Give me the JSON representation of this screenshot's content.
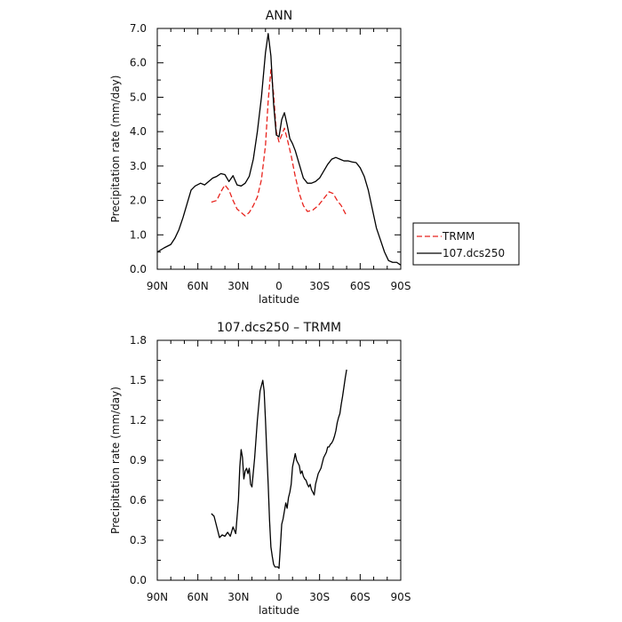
{
  "legend": {
    "entries": [
      {
        "label": "TRMM",
        "color": "#e8231d",
        "dash": "6,3"
      },
      {
        "label": "107.dcs250",
        "color": "#000000",
        "dash": ""
      }
    ]
  },
  "chart_data": [
    {
      "type": "line",
      "title": "ANN",
      "xlabel": "latitude",
      "ylabel": "Precipitation rate (mm/day)",
      "xlim": [
        -90,
        90
      ],
      "ylim": [
        0,
        7
      ],
      "x_ticks": [
        -90,
        -60,
        -30,
        0,
        30,
        60,
        90
      ],
      "x_tick_labels": [
        "90N",
        "60N",
        "30N",
        "0",
        "30S",
        "60S",
        "90S"
      ],
      "y_ticks": [
        0,
        1,
        2,
        3,
        4,
        5,
        6,
        7
      ],
      "y_tick_labels": [
        "0.0",
        "1.0",
        "2.0",
        "3.0",
        "4.0",
        "5.0",
        "6.0",
        "7.0"
      ],
      "series": [
        {
          "name": "TRMM",
          "color": "#e8231d",
          "dash": "6,3",
          "x": [
            -50,
            -46,
            -43,
            -40,
            -37,
            -34,
            -31,
            -28,
            -25,
            -22,
            -19,
            -16,
            -13,
            -10,
            -8,
            -6,
            -4,
            -2,
            0,
            2,
            4,
            6,
            9,
            12,
            15,
            18,
            21,
            25,
            29,
            33,
            37,
            40,
            43,
            46,
            50
          ],
          "y": [
            1.95,
            2.0,
            2.25,
            2.45,
            2.3,
            2.0,
            1.75,
            1.65,
            1.55,
            1.65,
            1.85,
            2.1,
            2.6,
            3.6,
            4.9,
            5.8,
            5.1,
            4.0,
            3.7,
            3.9,
            4.1,
            3.8,
            3.3,
            2.7,
            2.2,
            1.85,
            1.68,
            1.72,
            1.85,
            2.05,
            2.25,
            2.2,
            2.0,
            1.85,
            1.55
          ]
        },
        {
          "name": "107.dcs250",
          "color": "#000000",
          "dash": "",
          "x": [
            -90,
            -85,
            -80,
            -77,
            -74,
            -71,
            -68,
            -65,
            -62,
            -58,
            -55,
            -52,
            -49,
            -46,
            -43,
            -40,
            -37,
            -34,
            -31,
            -28,
            -25,
            -22,
            -19,
            -16,
            -13,
            -10,
            -8,
            -6,
            -4,
            -2,
            0,
            2,
            4,
            6,
            8,
            10,
            12,
            15,
            18,
            21,
            24,
            27,
            30,
            33,
            36,
            39,
            42,
            45,
            48,
            51,
            54,
            57,
            60,
            63,
            66,
            69,
            72,
            75,
            78,
            81,
            84,
            87,
            90
          ],
          "y": [
            0.5,
            0.62,
            0.72,
            0.9,
            1.15,
            1.5,
            1.9,
            2.3,
            2.42,
            2.5,
            2.45,
            2.55,
            2.65,
            2.7,
            2.78,
            2.75,
            2.55,
            2.72,
            2.45,
            2.42,
            2.5,
            2.7,
            3.2,
            4.0,
            5.0,
            6.3,
            6.85,
            6.2,
            4.8,
            3.9,
            3.85,
            4.35,
            4.55,
            4.2,
            3.8,
            3.65,
            3.45,
            3.05,
            2.65,
            2.5,
            2.5,
            2.55,
            2.65,
            2.85,
            3.05,
            3.2,
            3.25,
            3.2,
            3.15,
            3.15,
            3.12,
            3.1,
            2.95,
            2.7,
            2.3,
            1.75,
            1.2,
            0.85,
            0.5,
            0.25,
            0.2,
            0.2,
            0.12
          ]
        }
      ]
    },
    {
      "type": "line",
      "title": "107.dcs250 – TRMM",
      "xlabel": "latitude",
      "ylabel": "Precipitation rate (mm/day)",
      "xlim": [
        -90,
        90
      ],
      "ylim": [
        0,
        1.8
      ],
      "x_ticks": [
        -90,
        -60,
        -30,
        0,
        30,
        60,
        90
      ],
      "x_tick_labels": [
        "90N",
        "60N",
        "30N",
        "0",
        "30S",
        "60S",
        "90S"
      ],
      "y_ticks": [
        0,
        0.3,
        0.6,
        0.9,
        1.2,
        1.5,
        1.8
      ],
      "y_tick_labels": [
        "0.0",
        "0.3",
        "0.6",
        "0.9",
        "1.2",
        "1.5",
        "1.8"
      ],
      "series": [
        {
          "name": "107.dcs250 – TRMM",
          "color": "#000000",
          "dash": "",
          "x": [
            -50,
            -48,
            -46,
            -44,
            -42,
            -40,
            -38,
            -36,
            -34,
            -32,
            -30,
            -29,
            -28,
            -27,
            -26,
            -25,
            -24,
            -23,
            -22,
            -21,
            -20,
            -18,
            -16,
            -14,
            -12,
            -11,
            -10,
            -9,
            -8,
            -7,
            -6,
            -5,
            -4,
            -3,
            -2,
            -1,
            0,
            1,
            2,
            3,
            4,
            5,
            6,
            7,
            8,
            9,
            10,
            11,
            12,
            13,
            14,
            15,
            16,
            17,
            18,
            19,
            20,
            21,
            22,
            23,
            24,
            25,
            26,
            27,
            28,
            29,
            30,
            31,
            32,
            33,
            34,
            35,
            36,
            37,
            38,
            39,
            40,
            41,
            42,
            43,
            44,
            45,
            46,
            47,
            48,
            49,
            50
          ],
          "y": [
            0.5,
            0.48,
            0.4,
            0.32,
            0.34,
            0.33,
            0.36,
            0.33,
            0.4,
            0.35,
            0.6,
            0.85,
            0.98,
            0.92,
            0.76,
            0.82,
            0.84,
            0.8,
            0.84,
            0.72,
            0.7,
            0.92,
            1.2,
            1.42,
            1.5,
            1.42,
            1.2,
            0.95,
            0.72,
            0.45,
            0.25,
            0.18,
            0.12,
            0.1,
            0.1,
            0.1,
            0.09,
            0.25,
            0.42,
            0.46,
            0.52,
            0.58,
            0.54,
            0.62,
            0.66,
            0.72,
            0.85,
            0.9,
            0.95,
            0.9,
            0.88,
            0.86,
            0.8,
            0.82,
            0.78,
            0.76,
            0.75,
            0.72,
            0.7,
            0.72,
            0.68,
            0.66,
            0.64,
            0.72,
            0.76,
            0.8,
            0.82,
            0.84,
            0.88,
            0.92,
            0.94,
            0.96,
            1.0,
            1.0,
            1.02,
            1.03,
            1.05,
            1.08,
            1.12,
            1.18,
            1.22,
            1.25,
            1.32,
            1.38,
            1.45,
            1.52,
            1.58
          ]
        }
      ]
    }
  ]
}
